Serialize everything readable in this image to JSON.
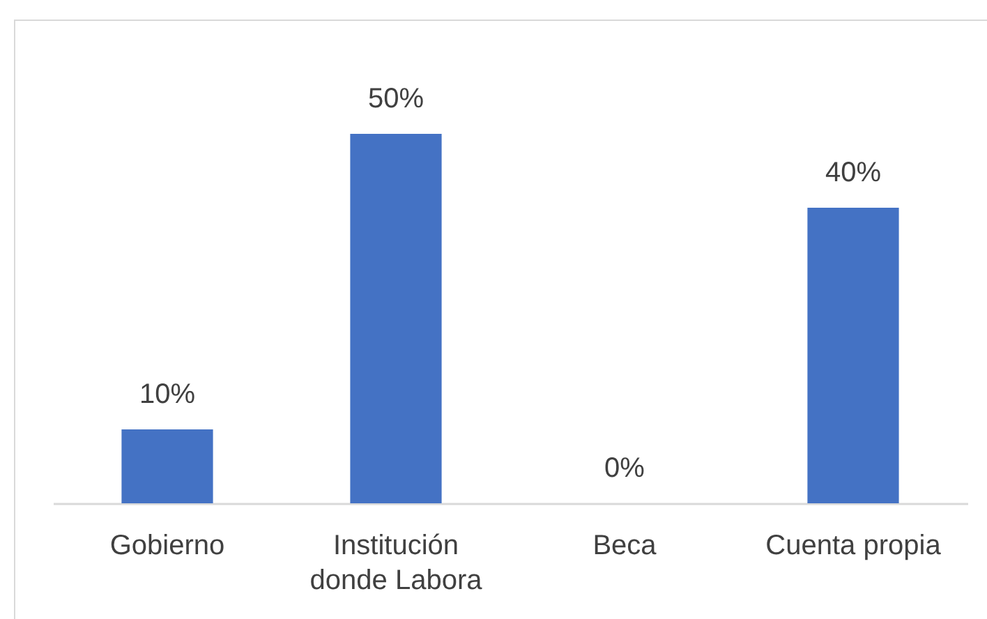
{
  "chart_data": {
    "type": "bar",
    "categories": [
      "Gobierno",
      "Institución donde Labora",
      "Beca",
      "Cuenta propia"
    ],
    "values": [
      10,
      50,
      0,
      40
    ],
    "value_labels": [
      "10%",
      "50%",
      "0%",
      "40%"
    ],
    "color": "#4472c4",
    "tick_labels": "x"
  }
}
